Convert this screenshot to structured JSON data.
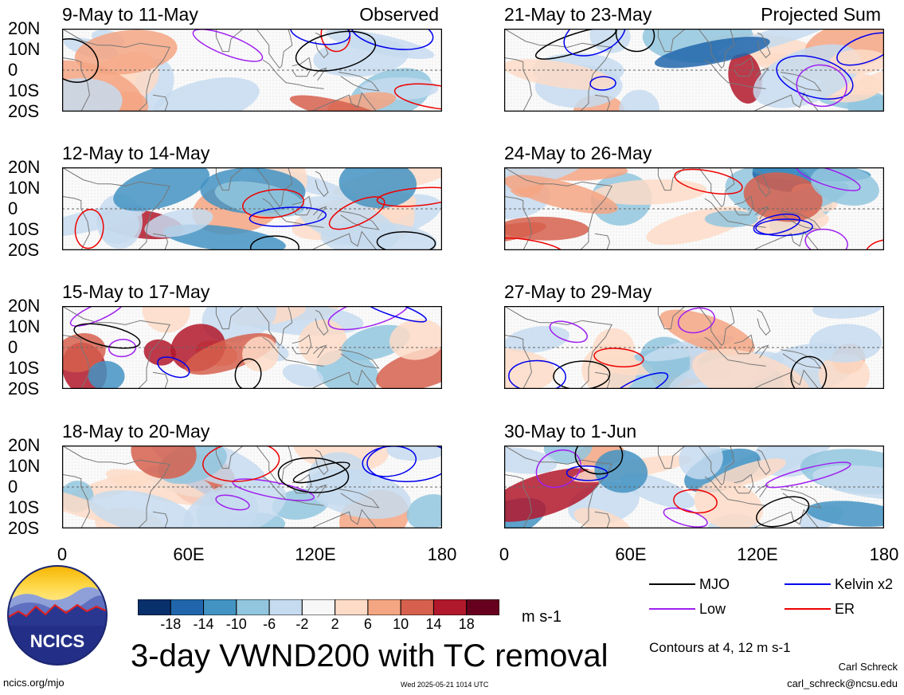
{
  "chart_data": {
    "type": "heatmap",
    "title": "3-day VWND200 with TC removal",
    "units": "m s-1",
    "colorbar": {
      "colors": [
        "#08306b",
        "#2166ac",
        "#4393c3",
        "#92c5de",
        "#c6dbef",
        "#f7f7f7",
        "#fddbc7",
        "#f4a582",
        "#d6604d",
        "#b2182b",
        "#67001f"
      ],
      "tick_labels": [
        "-18",
        "-14",
        "-10",
        "-6",
        "-2",
        "2",
        "6",
        "10",
        "14",
        "18"
      ]
    },
    "x_axis": {
      "range": [
        0,
        180
      ],
      "tick_labels": [
        "0",
        "60E",
        "120E",
        "180"
      ]
    },
    "y_axis": {
      "range": [
        -20,
        20
      ],
      "tick_labels": [
        "20N",
        "10N",
        "0",
        "10S",
        "20S"
      ]
    },
    "legend": [
      {
        "name": "MJO",
        "color": "#000000"
      },
      {
        "name": "Kelvin x2",
        "color": "#0000ee"
      },
      {
        "name": "Low",
        "color": "#a020f0"
      },
      {
        "name": "ER",
        "color": "#ee0000"
      }
    ],
    "contour_note": "Contours at 4, 12 m s-1",
    "panels": [
      {
        "title": "9-May to 11-May",
        "tag": "Observed"
      },
      {
        "title": "21-May to 23-May",
        "tag": "Projected Sum"
      },
      {
        "title": "12-May to 14-May",
        "tag": ""
      },
      {
        "title": "24-May to 26-May",
        "tag": ""
      },
      {
        "title": "15-May to 17-May",
        "tag": ""
      },
      {
        "title": "27-May to 29-May",
        "tag": ""
      },
      {
        "title": "18-May to 20-May",
        "tag": ""
      },
      {
        "title": "30-May to 1-Jun",
        "tag": ""
      }
    ]
  },
  "branding": {
    "logo_text": "NCICS",
    "site": "ncics.org/mjo",
    "timestamp": "Wed 2025-05-21 1014 UTC",
    "author": "Carl Schreck",
    "email": "carl_schreck@ncsu.edu"
  }
}
